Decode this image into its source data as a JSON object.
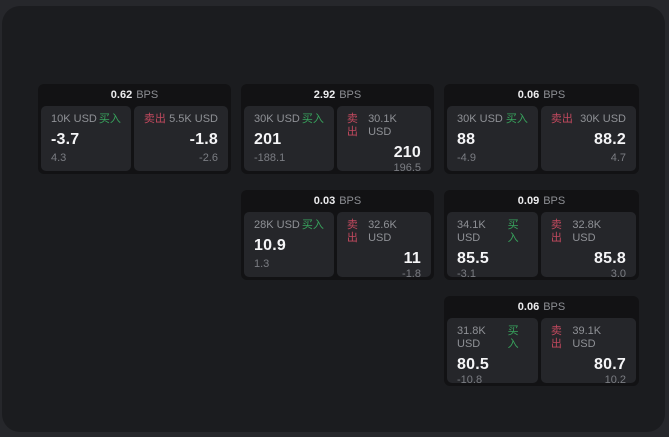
{
  "colors": {
    "buy": "#38a45d",
    "sell": "#c2495e"
  },
  "cards": [
    {
      "bps": "0.62",
      "unit": "BPS",
      "row": 1,
      "col": 1,
      "buy": {
        "amount": "10K USD",
        "side": "买入",
        "value": "-3.7",
        "delta": "4.3"
      },
      "sell": {
        "side": "卖出",
        "amount": "5.5K USD",
        "value": "-1.8",
        "delta": "-2.6"
      }
    },
    {
      "bps": "2.92",
      "unit": "BPS",
      "row": 1,
      "col": 2,
      "buy": {
        "amount": "30K USD",
        "side": "买入",
        "value": "201",
        "delta": "-188.1"
      },
      "sell": {
        "side": "卖出",
        "amount": "30.1K USD",
        "value": "210",
        "delta": "196.5"
      }
    },
    {
      "bps": "0.06",
      "unit": "BPS",
      "row": 1,
      "col": 3,
      "buy": {
        "amount": "30K USD",
        "side": "买入",
        "value": "88",
        "delta": "-4.9"
      },
      "sell": {
        "side": "卖出",
        "amount": "30K USD",
        "value": "88.2",
        "delta": "4.7"
      }
    },
    {
      "bps": "0.03",
      "unit": "BPS",
      "row": 2,
      "col": 2,
      "buy": {
        "amount": "28K USD",
        "side": "买入",
        "value": "10.9",
        "delta": "1.3"
      },
      "sell": {
        "side": "卖出",
        "amount": "32.6K USD",
        "value": "11",
        "delta": "-1.8"
      }
    },
    {
      "bps": "0.09",
      "unit": "BPS",
      "row": 2,
      "col": 3,
      "buy": {
        "amount": "34.1K USD",
        "side": "买入",
        "value": "85.5",
        "delta": "-3.1"
      },
      "sell": {
        "side": "卖出",
        "amount": "32.8K USD",
        "value": "85.8",
        "delta": "3.0"
      }
    },
    {
      "bps": "0.06",
      "unit": "BPS",
      "row": 3,
      "col": 3,
      "buy": {
        "amount": "31.8K USD",
        "side": "买入",
        "value": "80.5",
        "delta": "-10.8"
      },
      "sell": {
        "side": "卖出",
        "amount": "39.1K USD",
        "value": "80.7",
        "delta": "10.2"
      }
    }
  ]
}
